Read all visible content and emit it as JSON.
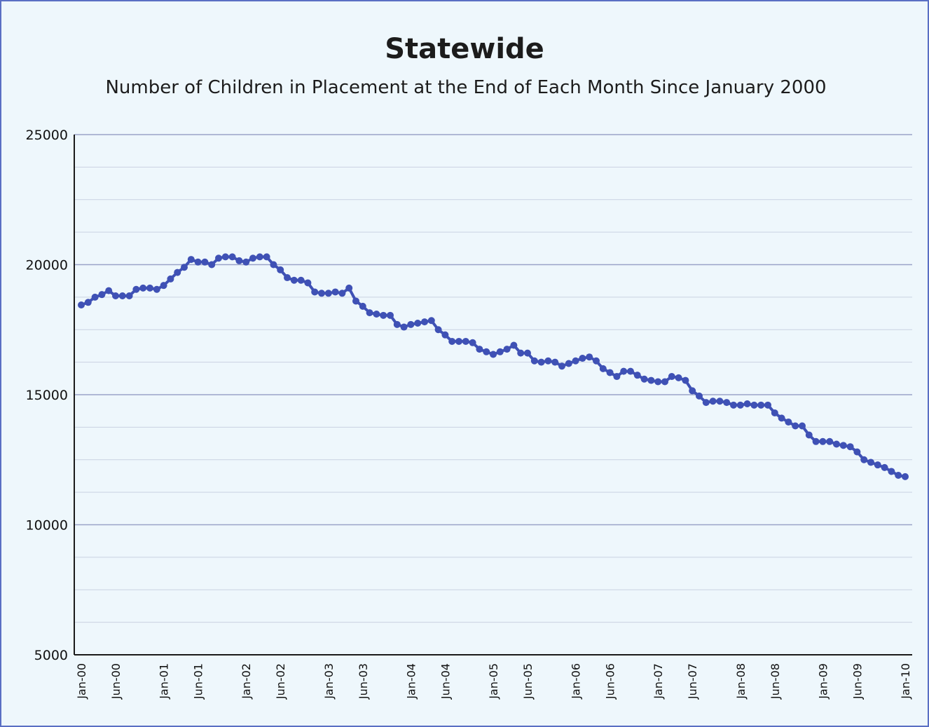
{
  "chart_data": {
    "type": "line",
    "title": "Statewide",
    "subtitle": "Number of Children in Placement at the End of Each Month Since January 2000",
    "xlabel": "",
    "ylabel": "",
    "ylim": [
      5000,
      25000
    ],
    "yticks": [
      5000,
      10000,
      15000,
      20000,
      25000
    ],
    "grid": true,
    "x_start": "2000-01",
    "x_end": "2010-01",
    "x_tick_labels": [
      {
        "label": "Jan-00",
        "month": 0
      },
      {
        "label": "Jun-00",
        "month": 5
      },
      {
        "label": "Jan-01",
        "month": 12
      },
      {
        "label": "Jun-01",
        "month": 17
      },
      {
        "label": "Jan-02",
        "month": 24
      },
      {
        "label": "Jun-02",
        "month": 29
      },
      {
        "label": "Jan-03",
        "month": 36
      },
      {
        "label": "Jun-03",
        "month": 41
      },
      {
        "label": "Jan-04",
        "month": 48
      },
      {
        "label": "Jun-04",
        "month": 53
      },
      {
        "label": "Jan-05",
        "month": 60
      },
      {
        "label": "Jun-05",
        "month": 65
      },
      {
        "label": "Jan-06",
        "month": 72
      },
      {
        "label": "Jun-06",
        "month": 77
      },
      {
        "label": "Jan-07",
        "month": 84
      },
      {
        "label": "Jun-07",
        "month": 89
      },
      {
        "label": "Jan-08",
        "month": 96
      },
      {
        "label": "Jun-08",
        "month": 101
      },
      {
        "label": "Jan-09",
        "month": 108
      },
      {
        "label": "Jun-09",
        "month": 113
      },
      {
        "label": "Jan-10",
        "month": 120
      }
    ],
    "series": [
      {
        "color": "#3f51b5",
        "values": [
          18450,
          18550,
          18750,
          18850,
          19000,
          18800,
          18800,
          18800,
          19050,
          19100,
          19100,
          19050,
          19200,
          19450,
          19700,
          19900,
          20200,
          20100,
          20100,
          20000,
          20250,
          20300,
          20300,
          20150,
          20100,
          20250,
          20300,
          20300,
          20000,
          19800,
          19500,
          19400,
          19400,
          19300,
          18950,
          18900,
          18900,
          18950,
          18900,
          19100,
          18600,
          18400,
          18150,
          18100,
          18050,
          18050,
          17700,
          17600,
          17700,
          17750,
          17800,
          17850,
          17500,
          17300,
          17050,
          17050,
          17050,
          17000,
          16750,
          16650,
          16550,
          16650,
          16750,
          16900,
          16600,
          16600,
          16300,
          16250,
          16300,
          16250,
          16100,
          16200,
          16300,
          16400,
          16450,
          16300,
          16000,
          15850,
          15700,
          15900,
          15900,
          15750,
          15600,
          15550,
          15500,
          15500,
          15700,
          15650,
          15550,
          15150,
          14950,
          14700,
          14750,
          14750,
          14700,
          14600,
          14600,
          14650,
          14600,
          14600,
          14600,
          14300,
          14100,
          13950,
          13800,
          13800,
          13450,
          13200,
          13200,
          13200,
          13100,
          13050,
          13000,
          12800,
          12500,
          12400,
          12300,
          12200,
          12050,
          11900,
          11850
        ]
      }
    ]
  }
}
